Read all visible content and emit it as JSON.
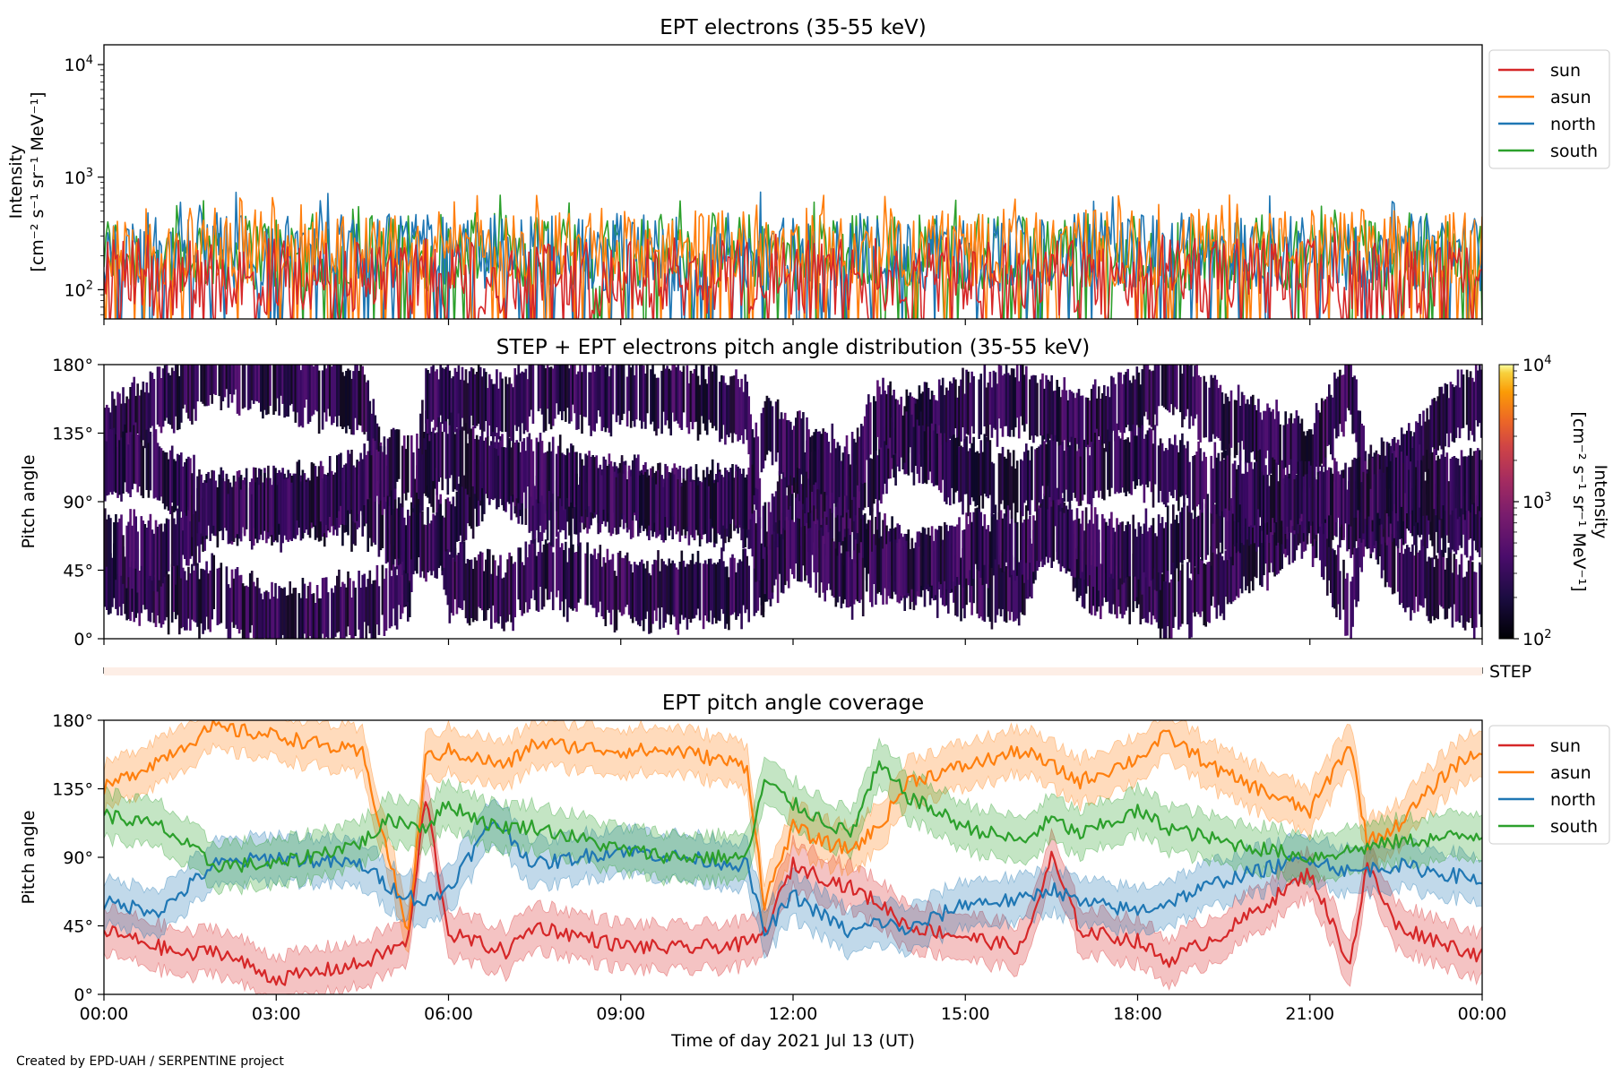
{
  "figure": {
    "credit": "Created by EPD-UAH / SERPENTINE project",
    "xlabel": "Time of day 2021 Jul 13 (UT)",
    "xticks": [
      "00:00",
      "03:00",
      "06:00",
      "09:00",
      "12:00",
      "15:00",
      "18:00",
      "21:00",
      "00:00"
    ]
  },
  "chart_data": [
    {
      "type": "line",
      "title": "EPT electrons (35-55 keV)",
      "ylabel_line1": "Intensity",
      "ylabel_line2": "[cm⁻² s⁻¹ sr⁻¹ MeV⁻¹]",
      "yscale": "log",
      "ylim": [
        55,
        15000
      ],
      "yticks": [
        {
          "value": 100,
          "base": "10",
          "exp": "2"
        },
        {
          "value": 1000,
          "base": "10",
          "exp": "3"
        },
        {
          "value": 10000,
          "base": "10",
          "exp": "4"
        }
      ],
      "xlim_hours": [
        0,
        24
      ],
      "legend_position": "outside-right",
      "series": [
        {
          "name": "south",
          "color": "#2ca02c",
          "typical": 200,
          "peak": 700
        },
        {
          "name": "north",
          "color": "#1f77b4",
          "typical": 200,
          "peak": 780
        },
        {
          "name": "asun",
          "color": "#ff7f0e",
          "typical": 220,
          "peak": 720
        },
        {
          "name": "sun",
          "color": "#d62728",
          "typical": 120,
          "peak": 330
        }
      ],
      "legend_order": [
        "sun",
        "asun",
        "north",
        "south"
      ]
    },
    {
      "type": "heatmap",
      "title": "STEP + EPT electrons pitch angle distribution (35-55 keV)",
      "ylabel": "Pitch angle",
      "ylim": [
        0,
        180
      ],
      "yticks": [
        "0°",
        "45°",
        "90°",
        "135°",
        "180°"
      ],
      "colorbar": {
        "label_line1": "Intensity",
        "label_line2": "[cm⁻² s⁻¹ sr⁻¹ MeV⁻¹]",
        "scale": "log",
        "range": [
          100,
          10000
        ],
        "ticks": [
          {
            "base": "10",
            "exp": "2"
          },
          {
            "base": "10",
            "exp": "3"
          },
          {
            "base": "10",
            "exp": "4"
          }
        ],
        "colormap": "inferno"
      },
      "typical_intensity": 180
    },
    {
      "type": "bar",
      "label": "STEP",
      "color": "#fdeee6"
    },
    {
      "type": "line",
      "title": "EPT pitch angle coverage",
      "ylabel": "Pitch angle",
      "ylim": [
        0,
        180
      ],
      "yticks": [
        "0°",
        "45°",
        "90°",
        "135°",
        "180°"
      ],
      "band_halfwidth_deg": 15,
      "legend_position": "outside-right",
      "series": [
        {
          "name": "sun",
          "color": "#d62728",
          "hours": [
            0,
            1.5,
            1.9,
            3,
            4.5,
            5.3,
            5.6,
            6,
            7,
            7.5,
            9,
            10,
            11.2,
            11.5,
            12,
            13,
            13.5,
            14,
            15,
            16,
            16.5,
            17,
            18,
            18.5,
            19.5,
            21,
            21.7,
            22,
            22.5,
            24
          ],
          "pitch": [
            42,
            25,
            30,
            10,
            20,
            35,
            130,
            40,
            28,
            45,
            32,
            30,
            33,
            40,
            85,
            70,
            60,
            45,
            38,
            30,
            90,
            42,
            35,
            22,
            40,
            80,
            20,
            85,
            45,
            25
          ]
        },
        {
          "name": "asun",
          "color": "#ff7f0e",
          "hours": [
            0,
            1,
            1.9,
            3,
            4.5,
            5.3,
            5.6,
            6,
            7,
            7.5,
            9,
            10,
            11.2,
            11.5,
            12,
            12.5,
            13,
            13.5,
            14,
            15,
            16,
            17,
            18,
            18.5,
            19.5,
            21,
            21.7,
            22,
            22.5,
            23.5,
            24
          ],
          "pitch": [
            135,
            155,
            175,
            170,
            158,
            40,
            155,
            160,
            150,
            165,
            160,
            160,
            150,
            60,
            110,
            100,
            95,
            110,
            140,
            150,
            160,
            140,
            155,
            170,
            145,
            120,
            165,
            100,
            110,
            150,
            160
          ]
        },
        {
          "name": "north",
          "color": "#1f77b4",
          "hours": [
            0,
            1,
            1.9,
            3,
            4.5,
            5,
            5.6,
            6,
            6.8,
            7.5,
            9,
            10,
            11.2,
            11.5,
            12,
            13,
            13.5,
            14,
            15,
            16,
            16.5,
            17,
            18,
            18.5,
            19.5,
            21,
            21.7,
            22.5,
            24
          ],
          "pitch": [
            60,
            55,
            85,
            90,
            85,
            70,
            60,
            70,
            115,
            85,
            95,
            90,
            85,
            40,
            65,
            40,
            48,
            42,
            60,
            62,
            70,
            60,
            55,
            60,
            75,
            90,
            80,
            85,
            75
          ]
        },
        {
          "name": "south",
          "color": "#2ca02c",
          "hours": [
            0,
            1,
            1.9,
            3,
            4.5,
            5,
            5.6,
            6,
            6.8,
            7.5,
            9,
            10,
            11.2,
            11.5,
            12,
            13,
            13.5,
            14,
            15,
            16,
            16.5,
            17,
            18,
            18.5,
            19.5,
            21,
            22.5,
            24
          ],
          "pitch": [
            118,
            110,
            85,
            85,
            100,
            115,
            110,
            125,
            110,
            110,
            95,
            90,
            90,
            140,
            125,
            105,
            150,
            130,
            110,
            100,
            115,
            105,
            120,
            110,
            100,
            90,
            100,
            105
          ]
        }
      ],
      "legend_order": [
        "sun",
        "asun",
        "north",
        "south"
      ]
    }
  ]
}
